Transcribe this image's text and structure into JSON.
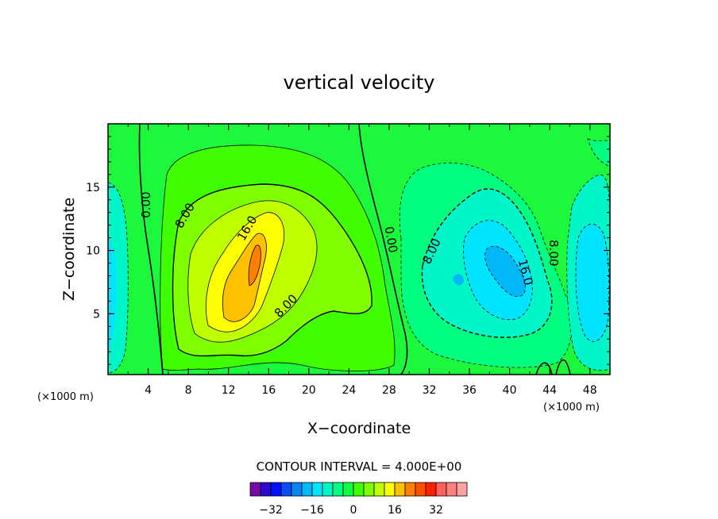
{
  "chart_data": {
    "type": "heatmap",
    "title": "vertical velocity",
    "xlabel": "X−coordinate",
    "ylabel": "Z−coordinate",
    "x_unit_left": "(×1000 m)",
    "x_unit_right": "(×1000 m)",
    "xlim": [
      0,
      50
    ],
    "ylim": [
      0.2,
      20
    ],
    "x_ticks": [
      4,
      8,
      12,
      16,
      20,
      24,
      28,
      32,
      36,
      40,
      44,
      48
    ],
    "x_tick_labels": [
      "4",
      "8",
      "12",
      "16",
      "20",
      "24",
      "28",
      "32",
      "36",
      "40",
      "44",
      "48"
    ],
    "y_ticks": [
      5,
      10,
      15
    ],
    "y_tick_labels": [
      "5",
      "10",
      "15"
    ],
    "contour_interval_text": "CONTOUR INTERVAL = 4.000E+00",
    "contour_labels": [
      {
        "text": "0.00",
        "x": 4.2,
        "y": 13.6,
        "rotate": -90
      },
      {
        "text": "8.00",
        "x": 8.0,
        "y": 12.6,
        "rotate": -60
      },
      {
        "text": "16.0",
        "x": 14.2,
        "y": 11.6,
        "rotate": -60
      },
      {
        "text": "8.00",
        "x": 18.0,
        "y": 5.4,
        "rotate": -45
      },
      {
        "text": "0.00",
        "x": 27.8,
        "y": 10.8,
        "rotate": 80
      },
      {
        "text": "8.00",
        "x": 32.6,
        "y": 9.8,
        "rotate": -65
      },
      {
        "text": "16.0",
        "x": 41.2,
        "y": 8.2,
        "rotate": 75
      },
      {
        "text": "8.00",
        "x": 44.0,
        "y": 9.8,
        "rotate": 90
      }
    ],
    "colorbar": {
      "colors": [
        "#7a0aa8",
        "#2d0ad0",
        "#0010ff",
        "#0a4cf5",
        "#0a84f0",
        "#00b8f5",
        "#00e5ff",
        "#00f5c8",
        "#00ff80",
        "#10ff40",
        "#40ff00",
        "#80ff00",
        "#c0ff00",
        "#ffff00",
        "#ffc000",
        "#ff8000",
        "#ff5000",
        "#ff2000",
        "#ff6060",
        "#ff8080",
        "#ffa0a0"
      ],
      "tick_labels": [
        "−32",
        "−16",
        "0",
        "16",
        "32"
      ],
      "tick_values": [
        -32,
        -16,
        0,
        16,
        32
      ]
    }
  }
}
